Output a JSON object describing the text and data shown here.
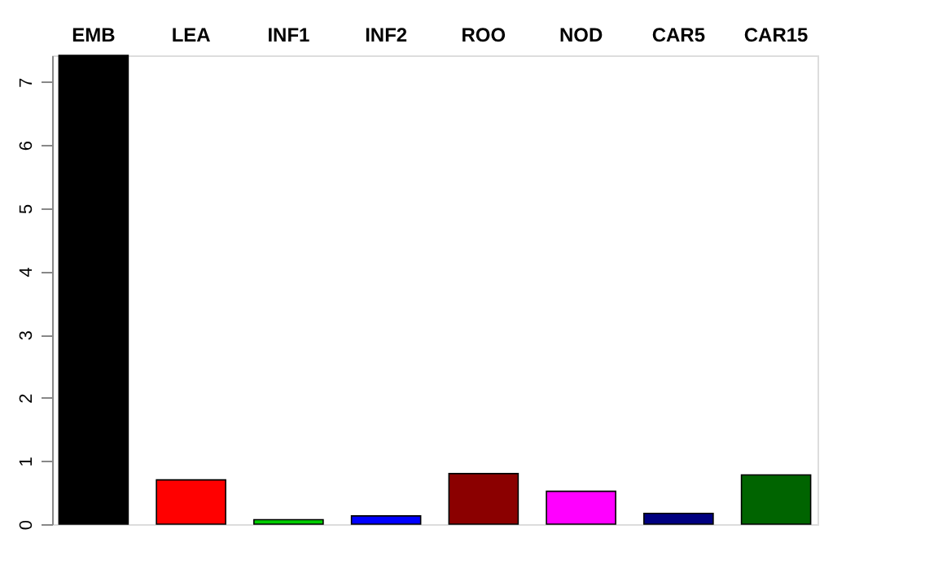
{
  "chart_data": {
    "type": "bar",
    "categories": [
      "EMB",
      "LEA",
      "INF1",
      "INF2",
      "ROO",
      "NOD",
      "CAR5",
      "CAR15"
    ],
    "values": [
      7.42,
      0.7,
      0.07,
      0.13,
      0.8,
      0.52,
      0.17,
      0.78
    ],
    "colors": [
      "#000000",
      "#ff0000",
      "#00cd00",
      "#0000ff",
      "#8b0000",
      "#ff00ff",
      "#000080",
      "#006400"
    ],
    "ylim": [
      0,
      7.42
    ],
    "yticks": [
      0,
      1,
      2,
      3,
      4,
      5,
      6,
      7
    ],
    "grid": false
  }
}
